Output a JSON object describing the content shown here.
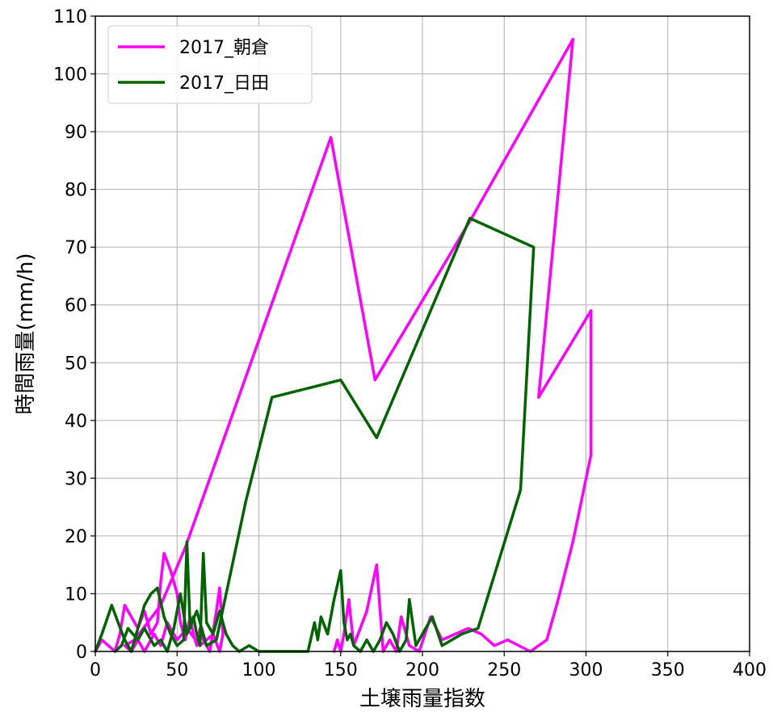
{
  "chart_data": {
    "type": "line",
    "xlabel": "土壌雨量指数",
    "ylabel": "時間雨量(mm/h)",
    "xlim": [
      0,
      400
    ],
    "ylim": [
      0,
      110
    ],
    "xticks": [
      0,
      50,
      100,
      150,
      200,
      250,
      300,
      350,
      400
    ],
    "yticks": [
      0,
      10,
      20,
      30,
      40,
      50,
      60,
      70,
      80,
      90,
      100,
      110
    ],
    "grid": true,
    "legend_position": "top-left",
    "series": [
      {
        "name": "2017_朝倉",
        "color": "#ff00ff",
        "points": [
          [
            0,
            0
          ],
          [
            4,
            2
          ],
          [
            8,
            1
          ],
          [
            12,
            0
          ],
          [
            15,
            3
          ],
          [
            18,
            8
          ],
          [
            22,
            6
          ],
          [
            26,
            4
          ],
          [
            30,
            7
          ],
          [
            34,
            3
          ],
          [
            38,
            5
          ],
          [
            40,
            12
          ],
          [
            42,
            17
          ],
          [
            46,
            14
          ],
          [
            50,
            10
          ],
          [
            52,
            5
          ],
          [
            55,
            2
          ],
          [
            58,
            6
          ],
          [
            60,
            3
          ],
          [
            62,
            1
          ],
          [
            64,
            4
          ],
          [
            66,
            2
          ],
          [
            70,
            0
          ],
          [
            74,
            7
          ],
          [
            76,
            11
          ],
          [
            78,
            3
          ],
          [
            76,
            0
          ],
          [
            72,
            3
          ],
          [
            64,
            1
          ],
          [
            56,
            4
          ],
          [
            50,
            2
          ],
          [
            44,
            5
          ],
          [
            40,
            1
          ],
          [
            36,
            3
          ],
          [
            30,
            0
          ],
          [
            26,
            2
          ],
          [
            22,
            0
          ],
          [
            18,
            1
          ],
          [
            24,
            2
          ],
          [
            32,
            5
          ],
          [
            40,
            8
          ],
          [
            55,
            18
          ],
          [
            144,
            89
          ],
          [
            171,
            47
          ],
          [
            230,
            75
          ],
          [
            292,
            106
          ],
          [
            271,
            44
          ],
          [
            303,
            59
          ],
          [
            303,
            34
          ],
          [
            292,
            19
          ],
          [
            283,
            9
          ],
          [
            276,
            2
          ],
          [
            271,
            1
          ],
          [
            266,
            0
          ],
          [
            252,
            2
          ],
          [
            244,
            1
          ],
          [
            236,
            3
          ],
          [
            228,
            4
          ],
          [
            220,
            3
          ],
          [
            212,
            2
          ],
          [
            205,
            6
          ],
          [
            198,
            0
          ],
          [
            192,
            1
          ],
          [
            187,
            6
          ],
          [
            184,
            0
          ],
          [
            180,
            2
          ],
          [
            176,
            0
          ],
          [
            172,
            15
          ],
          [
            166,
            7
          ],
          [
            158,
            1
          ],
          [
            155,
            9
          ],
          [
            152,
            3
          ],
          [
            150,
            0
          ],
          [
            148,
            2
          ],
          [
            146,
            0
          ]
        ]
      },
      {
        "name": "2017_日田",
        "color": "#006400",
        "points": [
          [
            0,
            0
          ],
          [
            4,
            3
          ],
          [
            10,
            8
          ],
          [
            14,
            5
          ],
          [
            18,
            2
          ],
          [
            22,
            0
          ],
          [
            26,
            4
          ],
          [
            30,
            8
          ],
          [
            34,
            10
          ],
          [
            38,
            11
          ],
          [
            42,
            6
          ],
          [
            46,
            3
          ],
          [
            50,
            1
          ],
          [
            54,
            2
          ],
          [
            56,
            19
          ],
          [
            58,
            4
          ],
          [
            60,
            6
          ],
          [
            62,
            3
          ],
          [
            64,
            1
          ],
          [
            66,
            17
          ],
          [
            68,
            5
          ],
          [
            72,
            3
          ],
          [
            76,
            7
          ],
          [
            80,
            3
          ],
          [
            84,
            1
          ],
          [
            88,
            0
          ],
          [
            94,
            1
          ],
          [
            100,
            0
          ],
          [
            110,
            0
          ],
          [
            130,
            0
          ],
          [
            134,
            5
          ],
          [
            136,
            2
          ],
          [
            138,
            6
          ],
          [
            142,
            3
          ],
          [
            146,
            9
          ],
          [
            150,
            14
          ],
          [
            152,
            5
          ],
          [
            154,
            2
          ],
          [
            156,
            3
          ],
          [
            158,
            1
          ],
          [
            162,
            0
          ],
          [
            166,
            2
          ],
          [
            170,
            0
          ],
          [
            174,
            2
          ],
          [
            178,
            5
          ],
          [
            182,
            3
          ],
          [
            186,
            0
          ],
          [
            190,
            2
          ],
          [
            192,
            9
          ],
          [
            196,
            1
          ],
          [
            202,
            4
          ],
          [
            206,
            6
          ],
          [
            212,
            1
          ],
          [
            224,
            3
          ],
          [
            234,
            4
          ],
          [
            260,
            28
          ],
          [
            268,
            70
          ],
          [
            229,
            75
          ],
          [
            172,
            37
          ],
          [
            150,
            47
          ],
          [
            108,
            44
          ],
          [
            92,
            26
          ],
          [
            74,
            2
          ],
          [
            68,
            1
          ],
          [
            62,
            7
          ],
          [
            56,
            3
          ],
          [
            52,
            10
          ],
          [
            48,
            4
          ],
          [
            44,
            0
          ],
          [
            40,
            2
          ],
          [
            36,
            1
          ],
          [
            30,
            4
          ],
          [
            26,
            2
          ],
          [
            20,
            4
          ],
          [
            16,
            1
          ],
          [
            12,
            0
          ]
        ]
      }
    ]
  }
}
